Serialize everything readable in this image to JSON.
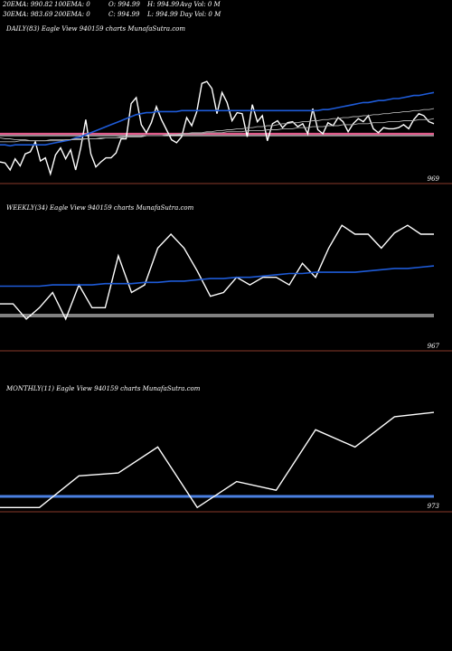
{
  "header": {
    "row1": [
      "20EMA: 990.82",
      "100EMA: 0",
      "O: 994.99",
      "H: 994.99",
      "Avg Vol: 0  M"
    ],
    "row2": [
      "30EMA: 983.69",
      "200EMA: 0",
      "C: 994.99",
      "L: 994.99",
      "Day Vol: 0  M"
    ]
  },
  "colors": {
    "price": "#ffffff",
    "ema_fast": "#1e5bd8",
    "ema_slow": "#b0b0b0",
    "support_daily": "#e05a8a",
    "flat_line": "#ffffff",
    "support_monthly": "#4a7fe0",
    "price_level": "#8a3a2a"
  },
  "chart_data": [
    {
      "type": "line",
      "label": "DAILY(83) Eagle  View  940159 charts MunafaSutra.com",
      "price_label": "969",
      "series": [
        {
          "values": [
            15,
            14,
            7,
            18,
            11,
            23,
            25,
            35,
            16,
            19,
            3,
            22,
            29,
            18,
            27,
            7,
            29,
            57,
            23,
            10,
            15,
            19,
            19,
            24,
            38,
            38,
            73,
            79,
            52,
            44,
            54,
            70,
            57,
            47,
            37,
            34,
            40,
            59,
            51,
            65,
            93,
            95,
            88,
            63,
            84,
            74,
            56,
            64,
            63,
            40,
            72,
            55,
            61,
            36,
            53,
            56,
            49,
            54,
            55,
            50,
            53,
            43,
            68,
            47,
            43,
            54,
            51,
            59,
            55,
            45,
            53,
            58,
            55,
            61,
            48,
            44,
            49,
            48,
            48,
            49,
            52,
            48,
            57,
            63,
            61,
            55,
            53
          ]
        },
        {
          "values": [
            32,
            32,
            31,
            32,
            32,
            32,
            32,
            32,
            32,
            32,
            33,
            34,
            35,
            36,
            37,
            39,
            40,
            42,
            44,
            46,
            48,
            50,
            52,
            54,
            56,
            58,
            60,
            62,
            63,
            64,
            64,
            65,
            65,
            65,
            65,
            65,
            66,
            66,
            66,
            66,
            66,
            66,
            66,
            66,
            66,
            66,
            66,
            66,
            66,
            66,
            66,
            66,
            66,
            66,
            66,
            66,
            66,
            66,
            66,
            66,
            66,
            66,
            66,
            66,
            67,
            67,
            68,
            69,
            70,
            71,
            72,
            73,
            74,
            74,
            75,
            76,
            76,
            77,
            78,
            78,
            79,
            80,
            81,
            81,
            82,
            83,
            84
          ]
        },
        {
          "values": [
            39,
            38,
            38,
            37,
            37,
            37,
            36,
            36,
            36,
            36,
            36,
            36,
            36,
            37,
            37,
            37,
            37,
            38,
            38,
            38,
            38,
            39,
            39,
            39,
            39,
            40,
            40,
            40,
            40,
            41,
            41,
            41,
            41,
            42,
            42,
            42,
            43,
            43,
            44,
            44,
            44,
            45,
            45,
            46,
            46,
            47,
            47,
            48,
            48,
            49,
            49,
            50,
            50,
            51,
            51,
            52,
            53,
            53,
            54,
            54,
            55,
            55,
            56,
            56,
            57,
            57,
            58,
            58,
            59,
            59,
            60,
            60,
            61,
            61,
            62,
            62,
            63,
            63,
            64,
            64,
            65,
            65,
            66,
            66,
            67,
            67,
            68
          ]
        },
        {
          "values": [
            35,
            35,
            35,
            35,
            36,
            36,
            36,
            36,
            36,
            36,
            37,
            37,
            37,
            37,
            37,
            38,
            38,
            38,
            38,
            38,
            39,
            39,
            39,
            39,
            40,
            40,
            40,
            40,
            40,
            41,
            41,
            41,
            41,
            42,
            42,
            42,
            42,
            43,
            43,
            43,
            43,
            44,
            44,
            44,
            44,
            45,
            45,
            45,
            45,
            46,
            46,
            46,
            46,
            47,
            47,
            47,
            48,
            48,
            48,
            49,
            49,
            49,
            50,
            50,
            50,
            51,
            51,
            51,
            52,
            52,
            52,
            53,
            53,
            53,
            54,
            54,
            54,
            55,
            55,
            55,
            56,
            56,
            56,
            57,
            57,
            57,
            58
          ]
        }
      ],
      "ylim": [
        -11,
        140
      ]
    },
    {
      "type": "line",
      "label": "WEEKLY(34) Eagle  View  940159 charts MunafaSutra.com",
      "price_label": "967",
      "series": [
        {
          "values": [
            20,
            20,
            8,
            17,
            29,
            8,
            35,
            17,
            17,
            58,
            29,
            35,
            64,
            75,
            64,
            46,
            26,
            29,
            41,
            35,
            41,
            41,
            35,
            52,
            41,
            64,
            82,
            75,
            75,
            64,
            76,
            82,
            75,
            75
          ]
        },
        {
          "values": [
            34,
            34,
            34,
            34,
            35,
            35,
            35,
            35,
            36,
            36,
            36,
            37,
            37,
            38,
            38,
            39,
            40,
            40,
            41,
            41,
            42,
            43,
            44,
            44,
            45,
            45,
            45,
            45,
            46,
            47,
            48,
            48,
            49,
            50
          ]
        }
      ],
      "ylim": [
        -22,
        90
      ]
    },
    {
      "type": "line",
      "label": "MONTHLY(11) Eagle  View  940159 charts MunafaSutra.com",
      "price_label": "973",
      "series": [
        {
          "values": [
            22,
            22,
            44,
            46,
            64,
            22,
            40,
            34,
            76,
            64,
            85,
            88
          ]
        }
      ],
      "ylim": [
        -65,
        100
      ]
    }
  ]
}
